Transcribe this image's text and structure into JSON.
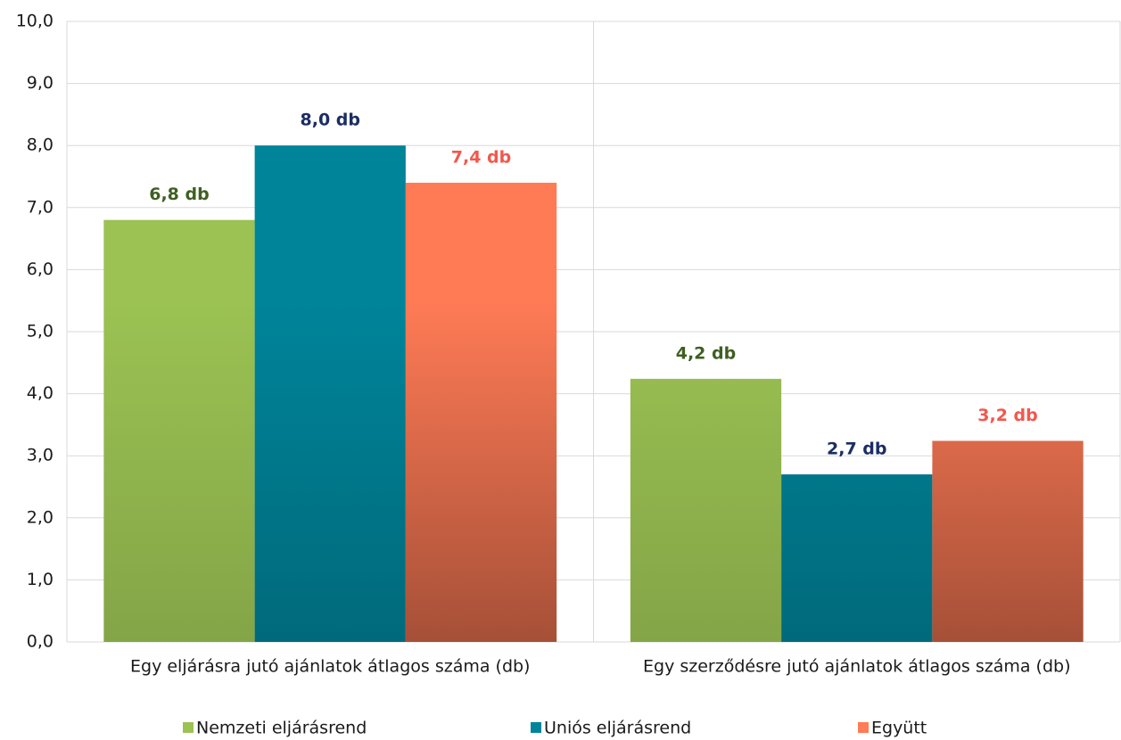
{
  "chart_data": {
    "type": "bar",
    "categories": [
      "Egy eljárásra jutó ajánlatok átlagos száma (db)",
      "Egy szerződésre jutó ajánlatok átlagos száma (db)"
    ],
    "series": [
      {
        "name": "Nemzeti eljárásrend",
        "color": "#9bc253",
        "label_color": "#3f5f22",
        "values": [
          6.8,
          4.24
        ],
        "value_labels": [
          "6,8 db",
          "4,2 db"
        ]
      },
      {
        "name": "Uniós eljárásrend",
        "color": "#00849a",
        "label_color": "#1b2d63",
        "values": [
          8.0,
          2.7
        ],
        "value_labels": [
          "8,0 db",
          "2,7 db"
        ]
      },
      {
        "name": "Együtt",
        "color": "#ff7b56",
        "label_color": "#f2584c",
        "values": [
          7.4,
          3.24
        ],
        "value_labels": [
          "7,4 db",
          "3,2 db"
        ]
      }
    ],
    "ylim": [
      0,
      10
    ],
    "yticks": [
      {
        "value": 0,
        "label": "0,0"
      },
      {
        "value": 1,
        "label": "1,0"
      },
      {
        "value": 2,
        "label": "2,0"
      },
      {
        "value": 3,
        "label": "3,0"
      },
      {
        "value": 4,
        "label": "4,0"
      },
      {
        "value": 5,
        "label": "5,0"
      },
      {
        "value": 6,
        "label": "6,0"
      },
      {
        "value": 7,
        "label": "7,0"
      },
      {
        "value": 8,
        "label": "8,0"
      },
      {
        "value": 9,
        "label": "9,0"
      },
      {
        "value": 10,
        "label": "10,0"
      }
    ],
    "grid": true,
    "legend": "bottom"
  }
}
